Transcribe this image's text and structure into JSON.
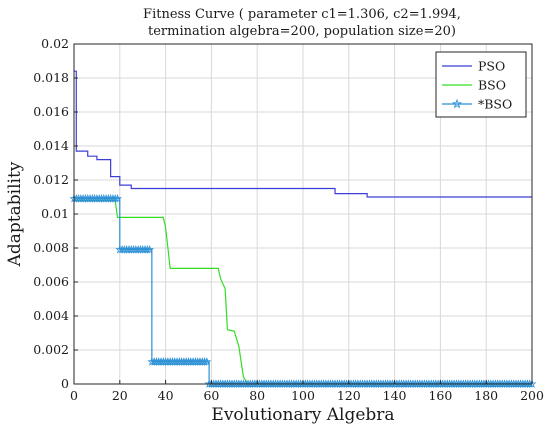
{
  "chart_data": {
    "type": "line",
    "title_lines": [
      "Fitness Curve ( parameter c1=1.306, c2=1.994,",
      "termination algebra=200, population size=20)"
    ],
    "xlabel": "Evolutionary Algebra",
    "ylabel": "Adaptability",
    "xlim": [
      0,
      200
    ],
    "ylim": [
      0,
      0.02
    ],
    "x_ticks": [
      0,
      20,
      40,
      60,
      80,
      100,
      120,
      140,
      160,
      180,
      200
    ],
    "y_ticks": [
      0,
      0.002,
      0.004,
      0.006,
      0.008,
      0.01,
      0.012,
      0.014,
      0.016,
      0.018,
      0.02
    ],
    "x_tick_labels": [
      "0",
      "20",
      "40",
      "60",
      "80",
      "100",
      "120",
      "140",
      "160",
      "180",
      "200"
    ],
    "y_tick_labels": [
      "0",
      "0.002",
      "0.004",
      "0.006",
      "0.008",
      "0.01",
      "0.012",
      "0.014",
      "0.016",
      "0.018",
      "0.02"
    ],
    "grid": true,
    "legend_position": "top-right",
    "series": [
      {
        "name": "PSO",
        "color": "#3b3fd6",
        "marker": "none",
        "step": true,
        "points": [
          [
            0,
            0.0184
          ],
          [
            1,
            0.0137
          ],
          [
            5,
            0.0137
          ],
          [
            6,
            0.0134
          ],
          [
            9,
            0.0134
          ],
          [
            10,
            0.0132
          ],
          [
            15,
            0.0132
          ],
          [
            16,
            0.0122
          ],
          [
            19,
            0.0122
          ],
          [
            20,
            0.0117
          ],
          [
            24,
            0.0117
          ],
          [
            25,
            0.0115
          ],
          [
            113,
            0.0115
          ],
          [
            114,
            0.0112
          ],
          [
            127,
            0.0112
          ],
          [
            128,
            0.011
          ],
          [
            200,
            0.011
          ]
        ]
      },
      {
        "name": "BSO",
        "color": "#33dd22",
        "marker": "none",
        "step": false,
        "points": [
          [
            0,
            0.0108
          ],
          [
            18,
            0.0108
          ],
          [
            19,
            0.0098
          ],
          [
            39,
            0.0098
          ],
          [
            40,
            0.0092
          ],
          [
            42,
            0.0068
          ],
          [
            63,
            0.0068
          ],
          [
            64,
            0.0062
          ],
          [
            66,
            0.0056
          ],
          [
            67,
            0.0032
          ],
          [
            70,
            0.0031
          ],
          [
            72,
            0.0022
          ],
          [
            74,
            0.0004
          ],
          [
            76,
            0.0
          ],
          [
            200,
            0.0
          ]
        ]
      },
      {
        "name": "*BSO",
        "color": "#2a8fd6",
        "marker": "star",
        "step": true,
        "marker_every": 1,
        "points": [
          [
            0,
            0.0109
          ],
          [
            19,
            0.0109
          ],
          [
            20,
            0.0079
          ],
          [
            33,
            0.0079
          ],
          [
            34,
            0.0013
          ],
          [
            58,
            0.0013
          ],
          [
            59,
            0.0
          ],
          [
            200,
            0.0
          ]
        ]
      }
    ]
  }
}
